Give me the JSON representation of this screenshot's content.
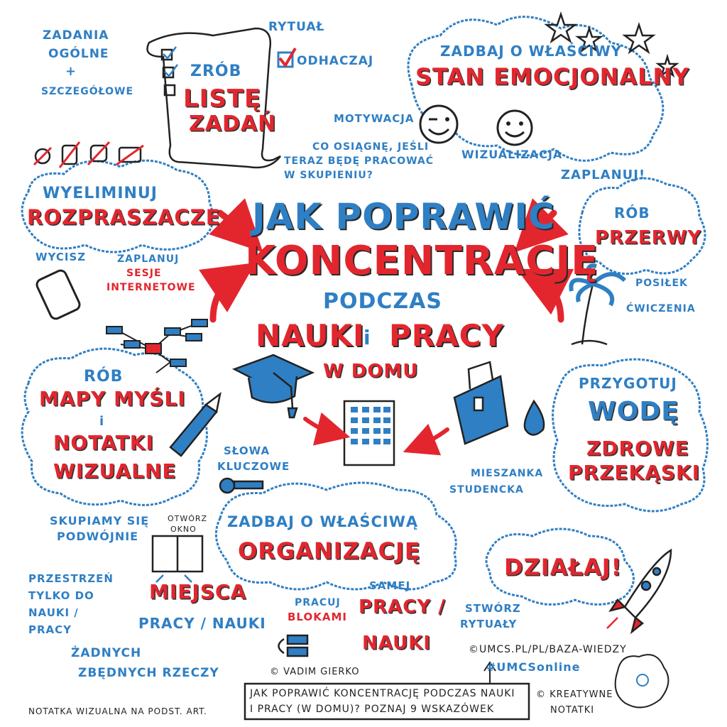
{
  "title": {
    "line1": "JAK POPRAWIĆ",
    "line2": "KONCENTRACJĘ",
    "line3": "PODCZAS",
    "line4a": "NAUKI",
    "line4b": "i",
    "line4c": "PRACY",
    "line5": "W DOMU"
  },
  "todo": {
    "general": "ZADANIA",
    "general2": "OGÓLNE",
    "plus": "+",
    "detailed": "SZCZEGÓŁOWE",
    "make": "ZRÓB",
    "list": "LISTĘ",
    "tasks": "ZADAŃ",
    "ritual": "RYTUAŁ",
    "check": "ODHACZAJ"
  },
  "emotion": {
    "care": "ZADBAJ O WŁAŚCIWY",
    "state": "STAN EMOCJONALNY",
    "motivation": "MOTYWACJA",
    "question1": "CO OSIĄGNĘ, JEŚLI",
    "question2": "TERAZ BĘDĘ PRACOWAĆ",
    "question3": "W SKUPIENIU?",
    "visualization": "WIZUALIZACJA"
  },
  "distractions": {
    "eliminate": "WYELIMINUJ",
    "distractors": "ROZPRASZACZE",
    "mute": "WYCISZ",
    "plan1": "ZAPLANUJ",
    "plan2": "SESJE",
    "plan3": "INTERNETOWE"
  },
  "breaks": {
    "plan": "ZAPLANUJ!",
    "make": "RÓB",
    "breaks": "PRZERWY",
    "meal": "POSIŁEK",
    "exercise": "ĆWICZENIA"
  },
  "mindmaps": {
    "make": "RÓB",
    "maps": "MAPY MYŚLI",
    "and": "i",
    "notes": "NOTATKI",
    "visual": "WIZUALNE",
    "keywords1": "SŁOWA",
    "keywords2": "KLUCZOWE",
    "double1": "SKUPIAMY SIĘ",
    "double2": "PODWÓJNIE"
  },
  "water": {
    "prepare": "PRZYGOTUJ",
    "water": "WODĘ",
    "healthy": "ZDROWE",
    "snacks": "PRZEKĄSKI",
    "mix1": "MIESZANKA",
    "mix2": "STUDENCKA"
  },
  "organization": {
    "care": "ZADBAJ O WŁAŚCIWĄ",
    "org": "ORGANIZACJĘ",
    "window1": "OTWÓRZ",
    "window2": "OKNO",
    "place": "MIEJSCA",
    "work_study": "PRACY / NAUKI",
    "space1": "PRZESTRZEŃ",
    "space2": "TYLKO DO",
    "space3": "NAUKI /",
    "space4": "PRACY",
    "none1": "ŻADNYCH",
    "none2": "ZBĘDNYCH RZECZY",
    "blocks1": "PRACUJ",
    "blocks2": "BLOKAMI",
    "same": "SAMEJ",
    "work": "PRACY /",
    "study": "NAUKI",
    "rituals1": "STWÓRZ",
    "rituals2": "RYTUAŁY"
  },
  "action": {
    "act": "DZIAŁAJ!"
  },
  "footer": {
    "author": "© VADIM GIERKO",
    "source": "©UMCS.PL/PL/BAZA-WIEDZY",
    "hashtag": "#UMCSonline",
    "box1": "JAK POPRAWIĆ KONCENTRACJĘ PODCZAS NAUKI",
    "box2": "I PRACY (W DOMU)? POZNAJ 9 WSKAZÓWEK",
    "note": "NOTATKA WIZUALNA NA PODST. ART.",
    "creative1": "© KREATYWNE",
    "creative2": "NOTATKI"
  },
  "colors": {
    "blue": "#2f7fc4",
    "red": "#e3262e",
    "ink": "#222222"
  }
}
